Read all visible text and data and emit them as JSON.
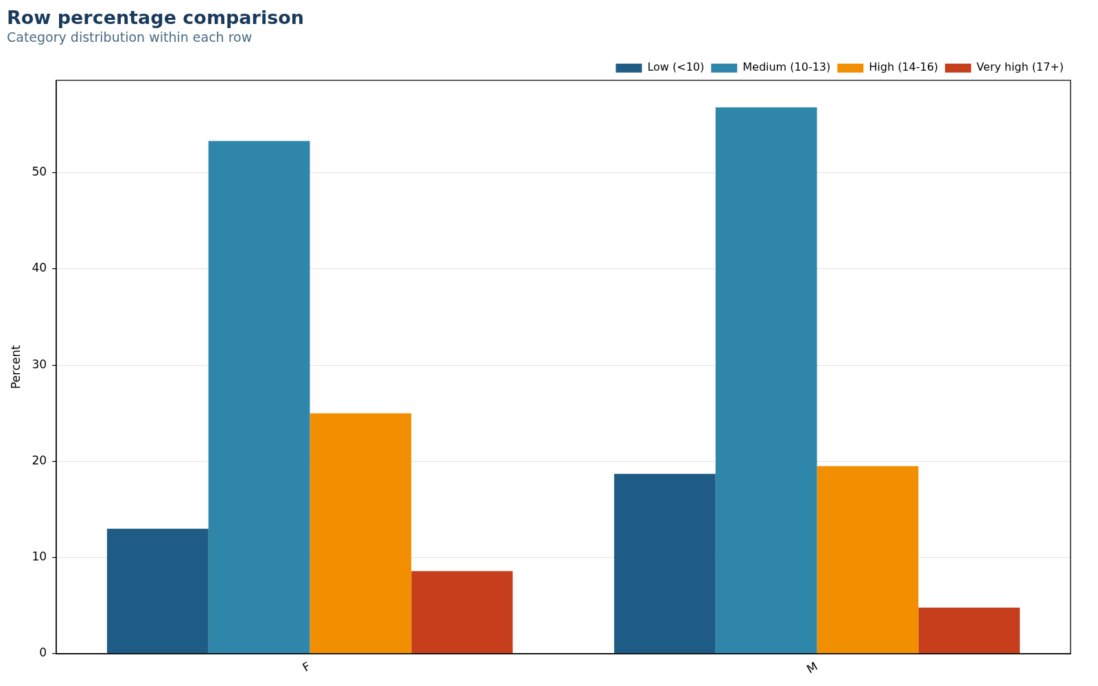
{
  "chart_data": {
    "type": "bar",
    "title": "Row percentage comparison",
    "subtitle": "Category distribution within each row",
    "ylabel": "Percent",
    "categories": [
      "F",
      "M"
    ],
    "series": [
      {
        "name": "Low (<10)",
        "color": "#1f5c85",
        "values": [
          13.0,
          18.7
        ]
      },
      {
        "name": "Medium (10-13)",
        "color": "#2e86ab",
        "values": [
          53.3,
          56.8
        ]
      },
      {
        "name": "High (14-16)",
        "color": "#f18f01",
        "values": [
          25.0,
          19.5
        ]
      },
      {
        "name": "Very high (17+)",
        "color": "#c73e1d",
        "values": [
          8.6,
          4.8
        ]
      }
    ],
    "ylim": [
      0,
      59.6
    ],
    "yticks": [
      0,
      10,
      20,
      30,
      40,
      50
    ],
    "grid": "y",
    "legend": "top right"
  }
}
